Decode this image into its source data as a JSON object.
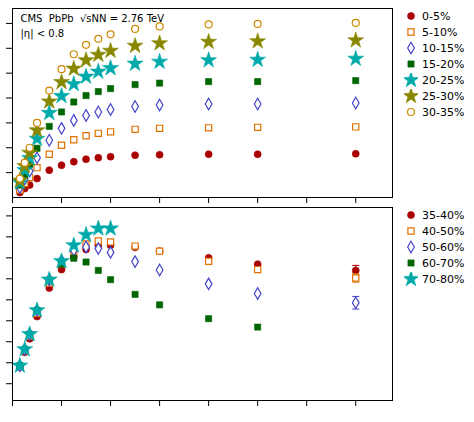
{
  "chart_data": [
    {
      "type": "scatter",
      "annotations": [
        "CMS  PbPb  √sNN = 2.76 TeV",
        "|η| < 0.8"
      ],
      "series": [
        {
          "name": "0-5%",
          "color": "#aa0000",
          "marker": "circle",
          "x": [
            0.3,
            0.5,
            0.7,
            1.0,
            1.5,
            2.0,
            2.5,
            3.0,
            3.5,
            4.0,
            5.0,
            6.0,
            8.0,
            10.0,
            14.0
          ],
          "values": [
            0.01,
            0.018,
            0.025,
            0.038,
            0.055,
            0.065,
            0.072,
            0.077,
            0.08,
            0.082,
            0.085,
            0.086,
            0.087,
            0.087,
            0.088
          ]
        },
        {
          "name": "5-10%",
          "color": "#e07000",
          "marker": "square-open",
          "x": [
            0.3,
            0.5,
            0.7,
            1.0,
            1.5,
            2.0,
            2.5,
            3.0,
            3.5,
            4.0,
            5.0,
            6.0,
            8.0,
            10.0,
            14.0
          ],
          "values": [
            0.015,
            0.028,
            0.04,
            0.06,
            0.087,
            0.105,
            0.116,
            0.124,
            0.129,
            0.132,
            0.137,
            0.139,
            0.14,
            0.141,
            0.142
          ]
        },
        {
          "name": "10-15%",
          "color": "#4444cc",
          "marker": "diamond-open",
          "x": [
            0.3,
            0.5,
            0.7,
            1.0,
            1.5,
            2.0,
            2.5,
            3.0,
            3.5,
            4.0,
            5.0,
            6.0,
            8.0,
            10.0,
            14.0
          ],
          "values": [
            0.02,
            0.037,
            0.053,
            0.08,
            0.115,
            0.139,
            0.155,
            0.165,
            0.172,
            0.177,
            0.183,
            0.186,
            0.188,
            0.188,
            0.19
          ]
        },
        {
          "name": "15-20%",
          "color": "#006600",
          "marker": "square",
          "x": [
            0.3,
            0.5,
            0.7,
            1.0,
            1.5,
            2.0,
            2.5,
            3.0,
            3.5,
            4.0,
            5.0,
            6.0,
            8.0,
            10.0,
            14.0
          ],
          "values": [
            0.025,
            0.046,
            0.066,
            0.099,
            0.143,
            0.172,
            0.192,
            0.205,
            0.213,
            0.219,
            0.227,
            0.23,
            0.233,
            0.233,
            0.235
          ]
        },
        {
          "name": "20-25%",
          "color": "#00aaaa",
          "marker": "star",
          "x": [
            0.3,
            0.5,
            0.7,
            1.0,
            1.5,
            2.0,
            2.5,
            3.0,
            3.5,
            4.0,
            5.0,
            6.0,
            8.0,
            10.0,
            14.0
          ],
          "values": [
            0.03,
            0.055,
            0.079,
            0.118,
            0.17,
            0.204,
            0.228,
            0.243,
            0.253,
            0.26,
            0.269,
            0.273,
            0.276,
            0.277,
            0.279
          ]
        },
        {
          "name": "25-30%",
          "color": "#888800",
          "marker": "star",
          "x": [
            0.3,
            0.5,
            0.7,
            1.0,
            1.5,
            2.0,
            2.5,
            3.0,
            3.5,
            4.0,
            5.0,
            6.0,
            8.0,
            10.0,
            14.0
          ],
          "values": [
            0.034,
            0.063,
            0.09,
            0.135,
            0.193,
            0.232,
            0.259,
            0.276,
            0.287,
            0.295,
            0.305,
            0.31,
            0.313,
            0.314,
            0.316
          ]
        },
        {
          "name": "30-35%",
          "color": "#cc8800",
          "marker": "circle-open",
          "x": [
            0.3,
            0.5,
            0.7,
            1.0,
            1.5,
            2.0,
            2.5,
            3.0,
            3.5,
            4.0,
            5.0,
            6.0,
            8.0,
            10.0,
            14.0
          ],
          "values": [
            0.038,
            0.07,
            0.1,
            0.15,
            0.215,
            0.258,
            0.288,
            0.307,
            0.319,
            0.328,
            0.339,
            0.344,
            0.348,
            0.349,
            0.351
          ]
        }
      ],
      "xlim": [
        0.0,
        15.5
      ],
      "xticks": [
        0,
        2,
        4,
        6,
        8,
        10,
        12,
        14
      ],
      "ylim": [
        0.0,
        0.38
      ],
      "yticks": [
        0.05,
        0.1,
        0.15,
        0.2,
        0.25,
        0.3,
        0.35
      ],
      "tick_labels": false,
      "grid": false,
      "legend": "right"
    },
    {
      "type": "scatter",
      "series": [
        {
          "name": "35-40%",
          "color": "#aa0000",
          "marker": "circle",
          "x": [
            0.3,
            0.5,
            0.7,
            1.0,
            1.5,
            2.0,
            2.5,
            3.0,
            3.5,
            4.0,
            5.0,
            6.0,
            8.0,
            10.0,
            14.0
          ],
          "values": [
            0.04,
            0.075,
            0.107,
            0.16,
            0.228,
            0.272,
            0.302,
            0.32,
            0.33,
            0.33,
            0.325,
            0.316,
            0.3,
            0.285,
            0.27
          ],
          "yerr": [
            0.0,
            0.0,
            0.0,
            0.0,
            0.0,
            0.0,
            0.0,
            0.0,
            0.0,
            0.0,
            0.0,
            0.0,
            0.0,
            0.0,
            0.012
          ]
        },
        {
          "name": "40-50%",
          "color": "#e07000",
          "marker": "square-open",
          "x": [
            0.3,
            0.5,
            0.7,
            1.0,
            1.5,
            2.0,
            2.5,
            3.0,
            3.5,
            4.0,
            5.0,
            6.0,
            8.0,
            10.0,
            14.0
          ],
          "values": [
            0.042,
            0.079,
            0.113,
            0.168,
            0.24,
            0.286,
            0.316,
            0.333,
            0.34,
            0.338,
            0.328,
            0.316,
            0.292,
            0.272,
            0.252
          ],
          "yerr": [
            0.0,
            0.0,
            0.0,
            0.0,
            0.0,
            0.0,
            0.0,
            0.0,
            0.0,
            0.0,
            0.0,
            0.0,
            0.0,
            0.0,
            0.01
          ]
        },
        {
          "name": "50-60%",
          "color": "#4444cc",
          "marker": "diamond-open",
          "x": [
            0.3,
            0.5,
            0.7,
            1.0,
            1.5,
            2.0,
            2.5,
            3.0,
            3.5,
            4.0,
            5.0,
            6.0,
            8.0,
            10.0,
            14.0
          ],
          "values": [
            0.043,
            0.082,
            0.118,
            0.175,
            0.248,
            0.293,
            0.318,
            0.326,
            0.322,
            0.313,
            0.291,
            0.271,
            0.238,
            0.215,
            0.193
          ],
          "yerr": [
            0.0,
            0.0,
            0.0,
            0.0,
            0.0,
            0.0,
            0.0,
            0.0,
            0.0,
            0.0,
            0.0,
            0.0,
            0.0,
            0.0,
            0.015
          ]
        },
        {
          "name": "60-70%",
          "color": "#006600",
          "marker": "square",
          "x": [
            0.3,
            0.5,
            0.7,
            1.0,
            1.5,
            2.0,
            2.5,
            3.0,
            3.5,
            4.0,
            5.0,
            6.0,
            8.0,
            10.0
          ],
          "values": [
            0.043,
            0.082,
            0.118,
            0.175,
            0.247,
            0.285,
            0.299,
            0.29,
            0.27,
            0.248,
            0.213,
            0.188,
            0.155,
            0.135
          ],
          "yerr": [
            0.0,
            0.0,
            0.0,
            0.0,
            0.0,
            0.0,
            0.0,
            0.0,
            0.0,
            0.0,
            0.0,
            0.0,
            0.0,
            0.0
          ]
        },
        {
          "name": "70-80%",
          "color": "#00aaaa",
          "marker": "star",
          "x": [
            0.3,
            0.5,
            0.7,
            1.0,
            1.5,
            2.0,
            2.5,
            3.0,
            3.5,
            4.0
          ],
          "values": [
            0.043,
            0.082,
            0.118,
            0.175,
            0.248,
            0.292,
            0.33,
            0.355,
            0.37,
            0.37
          ],
          "yerr": [
            0.0,
            0.0,
            0.0,
            0.0,
            0.0,
            0.0,
            0.0,
            0.0,
            0.0,
            0.0
          ]
        }
      ],
      "xlim": [
        0.0,
        15.5
      ],
      "xticks": [
        0,
        2,
        4,
        6,
        8,
        10,
        12,
        14
      ],
      "ylim": [
        -0.04,
        0.42
      ],
      "yticks": [
        0.0,
        0.05,
        0.1,
        0.15,
        0.2,
        0.25,
        0.3,
        0.35,
        0.4
      ],
      "tick_labels": false,
      "grid": false,
      "legend": "right"
    }
  ]
}
